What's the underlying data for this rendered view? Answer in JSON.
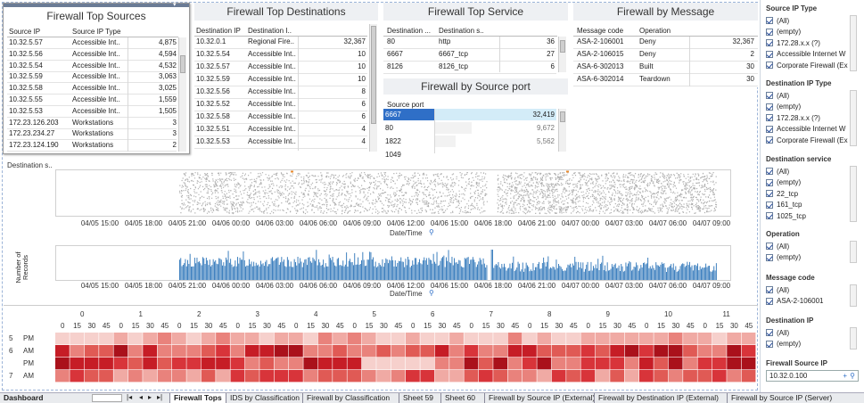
{
  "colors": {
    "accent": "#2f6fc7",
    "bar": "#2a73b8",
    "scatter": "#b0b0b0",
    "heat_dark": "#b5141d",
    "heat_light": "#f4c7c3",
    "selected": "#2f6fc7"
  },
  "top_sources": {
    "title": "Firewall Top Sources",
    "col1": "Source IP",
    "col2": "Source IP Type",
    "rows": [
      {
        "ip": "10.32.5.57",
        "type": "Accessible Int..",
        "val": "4,875"
      },
      {
        "ip": "10.32.5.56",
        "type": "Accessible Int..",
        "val": "4,594"
      },
      {
        "ip": "10.32.5.54",
        "type": "Accessible Int..",
        "val": "4,532"
      },
      {
        "ip": "10.32.5.59",
        "type": "Accessible Int..",
        "val": "3,063"
      },
      {
        "ip": "10.32.5.58",
        "type": "Accessible Int..",
        "val": "3,025"
      },
      {
        "ip": "10.32.5.55",
        "type": "Accessible Int..",
        "val": "1,559"
      },
      {
        "ip": "10.32.5.53",
        "type": "Accessible Int..",
        "val": "1,505"
      },
      {
        "ip": "172.23.126.203",
        "type": "Workstations",
        "val": "3"
      },
      {
        "ip": "172.23.234.27",
        "type": "Workstations",
        "val": "3"
      },
      {
        "ip": "172.23.124.190",
        "type": "Workstations",
        "val": "2"
      }
    ]
  },
  "top_destinations": {
    "title": "Firewall Top Destinations",
    "col1": "Destination IP",
    "col2": "Destination I..",
    "rows": [
      {
        "ip": "10.32.0.1",
        "type": "Regional Fire..",
        "val": "32,367"
      },
      {
        "ip": "10.32.5.54",
        "type": "Accessible Int..",
        "val": "10"
      },
      {
        "ip": "10.32.5.57",
        "type": "Accessible Int..",
        "val": "10"
      },
      {
        "ip": "10.32.5.59",
        "type": "Accessible Int..",
        "val": "10"
      },
      {
        "ip": "10.32.5.56",
        "type": "Accessible Int..",
        "val": "8"
      },
      {
        "ip": "10.32.5.52",
        "type": "Accessible Int..",
        "val": "6"
      },
      {
        "ip": "10.32.5.58",
        "type": "Accessible Int..",
        "val": "6"
      },
      {
        "ip": "10.32.5.51",
        "type": "Accessible Int..",
        "val": "4"
      },
      {
        "ip": "10.32.5.53",
        "type": "Accessible Int..",
        "val": "4"
      }
    ]
  },
  "top_service": {
    "title": "Firewall Top Service",
    "col1": "Destination ...",
    "col2": "Destination s..",
    "rows": [
      {
        "a": "80",
        "b": "http",
        "val": "36"
      },
      {
        "a": "6667",
        "b": "6667_tcp",
        "val": "27"
      },
      {
        "a": "8126",
        "b": "8126_tcp",
        "val": "6"
      }
    ]
  },
  "by_message": {
    "title": "Firewall by Message",
    "col1": "Message code",
    "col2": "Operation",
    "rows": [
      {
        "a": "ASA-2-106001",
        "b": "Deny",
        "val": "32,367"
      },
      {
        "a": "ASA-2-106015",
        "b": "Deny",
        "val": "2"
      },
      {
        "a": "ASA-6-302013",
        "b": "Built",
        "val": "30"
      },
      {
        "a": "ASA-6-302014",
        "b": "Teardown",
        "val": "30"
      }
    ]
  },
  "by_source_port": {
    "title": "Firewall by Source port",
    "col1": "Source port",
    "rows": [
      {
        "port": "6667",
        "val": "32,419",
        "bar": 1.0
      },
      {
        "port": "80",
        "val": "9,672",
        "bar": 0.3
      },
      {
        "port": "1822",
        "val": "5,562",
        "bar": 0.17
      },
      {
        "port": "1049",
        "val": "",
        "bar": 0
      }
    ]
  },
  "scatter": {
    "ylabel": "Destination s..",
    "xlabel": "Date/Time",
    "ticks": [
      "04/05 15:00",
      "04/05 18:00",
      "04/05 21:00",
      "04/06 00:00",
      "04/06 03:00",
      "04/06 06:00",
      "04/06 09:00",
      "04/06 12:00",
      "04/06 15:00",
      "04/06 18:00",
      "04/06 21:00",
      "04/07 00:00",
      "04/07 03:00",
      "04/07 06:00",
      "04/07 09:00"
    ]
  },
  "bars": {
    "ylabel": "Number of Records",
    "xlabel": "Date/Time",
    "ticks": [
      "04/05 15:00",
      "04/05 18:00",
      "04/05 21:00",
      "04/06 00:00",
      "04/06 03:00",
      "04/06 06:00",
      "04/06 09:00",
      "04/06 12:00",
      "04/06 15:00",
      "04/06 18:00",
      "04/06 21:00",
      "04/07 00:00",
      "04/07 03:00",
      "04/07 06:00",
      "04/07 09:00"
    ]
  },
  "heatmap": {
    "hours": [
      "0",
      "1",
      "2",
      "3",
      "4",
      "5",
      "6",
      "7",
      "8",
      "9",
      "10",
      "11"
    ],
    "minutes": [
      "0",
      "15",
      "30",
      "45"
    ],
    "row_groups": [
      "5",
      "6",
      "",
      "7"
    ],
    "row_labels": [
      "PM",
      "AM",
      "PM",
      "AM"
    ]
  },
  "filters": [
    {
      "title": "Source IP Type",
      "items": [
        "(All)",
        "(empty)",
        "172.28.x.x (?)",
        "Accessible Internet W",
        "Corporate Firewall (Ex"
      ]
    },
    {
      "title": "Destination IP Type",
      "items": [
        "(All)",
        "(empty)",
        "172.28.x.x (?)",
        "Accessible Internet W",
        "Corporate Firewall (Ex"
      ]
    },
    {
      "title": "Destination service",
      "items": [
        "(All)",
        "(empty)",
        "22_tcp",
        "161_tcp",
        "1025_tcp"
      ]
    },
    {
      "title": "Operation",
      "items": [
        "(All)",
        "(empty)"
      ]
    },
    {
      "title": "Message code",
      "items": [
        "(All)",
        "ASA-2-106001"
      ]
    },
    {
      "title": "Destination IP",
      "items": [
        "(All)",
        "(empty)"
      ]
    }
  ],
  "source_ip_filter": {
    "title": "Firewall Source IP",
    "value": "10.32.0.100"
  },
  "tabs": {
    "dashboard": "Dashboard",
    "items": [
      "Firewall Tops",
      "IDS by Classification",
      "Firewall by Classification",
      "Sheet 59",
      "Sheet 60",
      "Firewall by Source IP (External)",
      "Firewall by Destination IP (External)",
      "Firewall by Source IP (Server)"
    ]
  }
}
